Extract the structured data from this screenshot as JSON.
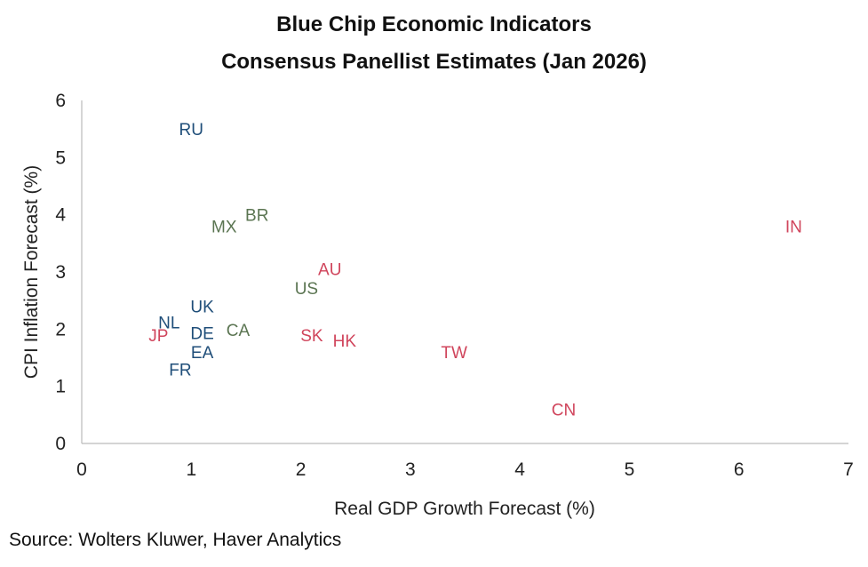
{
  "chart_data": {
    "type": "scatter",
    "title": "Blue Chip Economic Indicators",
    "subtitle": "Consensus Panellist Estimates (Jan 2026)",
    "xlabel": "Real GDP Growth Forecast (%)",
    "ylabel": "CPI Inflation Forecast (%)",
    "xlim": [
      0,
      7
    ],
    "ylim": [
      0,
      6
    ],
    "xticks": [
      0,
      1,
      2,
      3,
      4,
      5,
      6,
      7
    ],
    "yticks": [
      0,
      1,
      2,
      3,
      4,
      5,
      6
    ],
    "grid": false,
    "marker": "text-label",
    "group_colors": {
      "blue": "#1f4e79",
      "green": "#5b7552",
      "red": "#d0455c"
    },
    "points": [
      {
        "label": "RU",
        "x": 1.0,
        "y": 5.5,
        "color": "blue"
      },
      {
        "label": "MX",
        "x": 1.3,
        "y": 3.8,
        "color": "green"
      },
      {
        "label": "BR",
        "x": 1.6,
        "y": 4.0,
        "color": "green"
      },
      {
        "label": "IN",
        "x": 6.5,
        "y": 3.8,
        "color": "red"
      },
      {
        "label": "AU",
        "x": 2.2,
        "y": 2.9,
        "color": "red"
      },
      {
        "label": "US",
        "x": 2.1,
        "y": 2.8,
        "color": "green"
      },
      {
        "label": "UK",
        "x": 1.1,
        "y": 2.4,
        "color": "blue"
      },
      {
        "label": "NL",
        "x": 1.0,
        "y": 2.2,
        "color": "blue"
      },
      {
        "label": "CA",
        "x": 1.2,
        "y": 2.1,
        "color": "green"
      },
      {
        "label": "DE",
        "x": 1.1,
        "y": 2.0,
        "color": "blue"
      },
      {
        "label": "EA",
        "x": 1.1,
        "y": 1.8,
        "color": "blue"
      },
      {
        "label": "JP",
        "x": 0.7,
        "y": 1.9,
        "color": "red"
      },
      {
        "label": "FR",
        "x": 0.9,
        "y": 1.3,
        "color": "blue"
      },
      {
        "label": "SK",
        "x": 2.1,
        "y": 1.9,
        "color": "red"
      },
      {
        "label": "HK",
        "x": 2.4,
        "y": 1.8,
        "color": "red"
      },
      {
        "label": "TW",
        "x": 3.4,
        "y": 1.6,
        "color": "red"
      },
      {
        "label": "CN",
        "x": 4.4,
        "y": 0.6,
        "color": "red"
      }
    ]
  },
  "source": "Source: Wolters Kluwer, Haver Analytics"
}
